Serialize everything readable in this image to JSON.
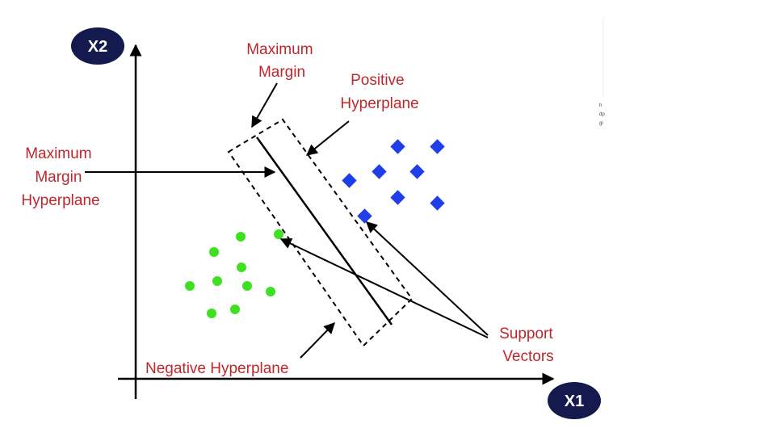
{
  "axes": {
    "x_label": "X1",
    "y_label": "X2"
  },
  "labels": {
    "maximum_margin": [
      "Maximum",
      "Margin"
    ],
    "positive_hyperplane": [
      "Positive",
      "Hyperplane"
    ],
    "maximum_margin_hyperplane": [
      "Maximum",
      "Margin",
      "Hyperplane"
    ],
    "negative_hyperplane": "Negative Hyperplane",
    "support_vectors": [
      "Support",
      "Vectors"
    ]
  },
  "colors": {
    "label_red": "#c0272d",
    "axis_badge": "#141a4d",
    "circle_class": "#3ee020",
    "diamond_class": "#1f3ee8",
    "line": "#000000"
  }
}
